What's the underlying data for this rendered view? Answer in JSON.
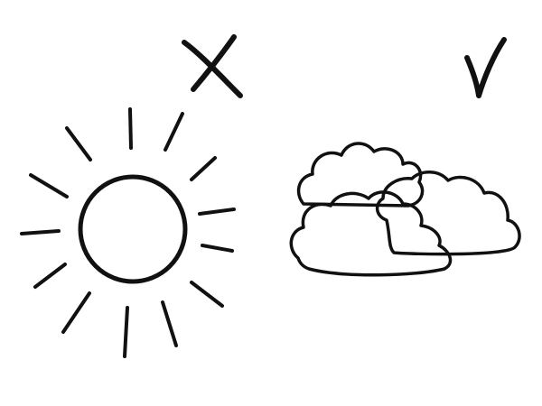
{
  "illustration": {
    "background_color": "#ffffff",
    "ink_color": "#111111",
    "panels": [
      {
        "subject": "sun",
        "icon": "sun-icon",
        "verdict": "rejected",
        "mark_icon": "cross-mark-icon",
        "ray_count": 14
      },
      {
        "subject": "clouds",
        "icon": "cloud-icon",
        "verdict": "approved",
        "mark_icon": "check-mark-icon",
        "cloud_count": 3
      }
    ]
  }
}
